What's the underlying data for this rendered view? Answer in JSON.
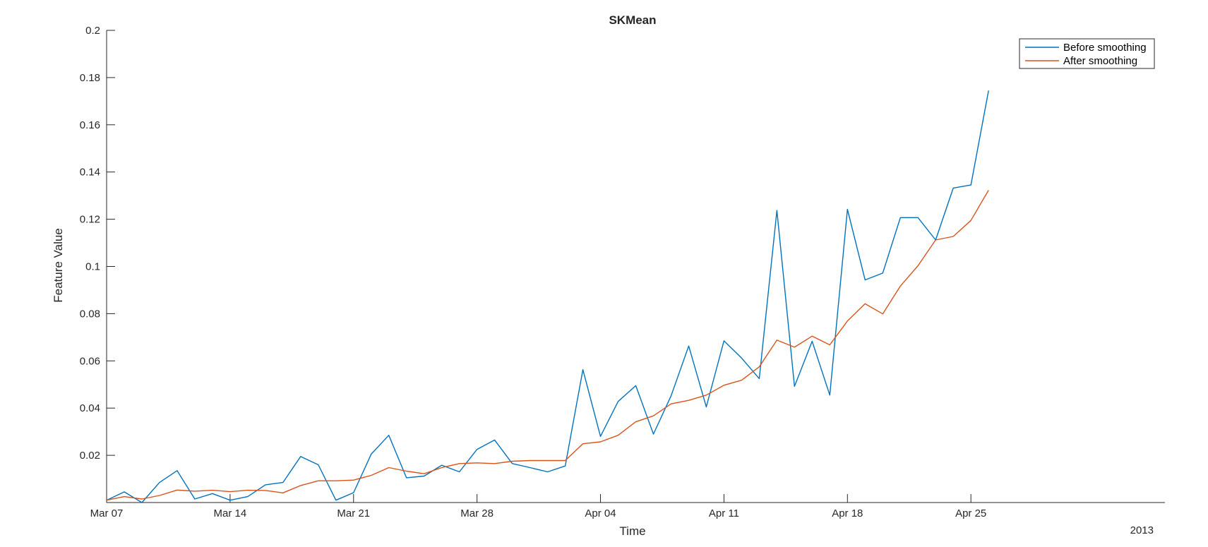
{
  "chart_data": {
    "type": "line",
    "title": "SKMean",
    "xlabel": "Time",
    "ylabel": "Feature Value",
    "x_secondary_label": "2013",
    "x_axis_type": "date",
    "xlim": [
      "2013-03-07",
      "2013-05-06"
    ],
    "ylim": [
      0,
      0.2
    ],
    "yticks": [
      0.02,
      0.04,
      0.06,
      0.08,
      0.1,
      0.12,
      0.14,
      0.16,
      0.18,
      0.2
    ],
    "ytick_labels": [
      "0.02",
      "0.04",
      "0.06",
      "0.08",
      "0.1",
      "0.12",
      "0.14",
      "0.16",
      "0.18",
      "0.2"
    ],
    "xticks": [
      "2013-03-07",
      "2013-03-14",
      "2013-03-21",
      "2013-03-28",
      "2013-04-04",
      "2013-04-11",
      "2013-04-18",
      "2013-04-25"
    ],
    "xtick_labels": [
      "Mar 07",
      "Mar 14",
      "Mar 21",
      "Mar 28",
      "Apr 04",
      "Apr 11",
      "Apr 18",
      "Apr 25"
    ],
    "grid": false,
    "legend_position": "top-right",
    "x": [
      "2013-03-07",
      "2013-03-08",
      "2013-03-09",
      "2013-03-10",
      "2013-03-11",
      "2013-03-12",
      "2013-03-13",
      "2013-03-14",
      "2013-03-15",
      "2013-03-16",
      "2013-03-17",
      "2013-03-18",
      "2013-03-19",
      "2013-03-20",
      "2013-03-21",
      "2013-03-22",
      "2013-03-23",
      "2013-03-24",
      "2013-03-25",
      "2013-03-26",
      "2013-03-27",
      "2013-03-28",
      "2013-03-29",
      "2013-03-30",
      "2013-03-31",
      "2013-04-01",
      "2013-04-02",
      "2013-04-03",
      "2013-04-04",
      "2013-04-05",
      "2013-04-06",
      "2013-04-07",
      "2013-04-08",
      "2013-04-09",
      "2013-04-10",
      "2013-04-11",
      "2013-04-12",
      "2013-04-13",
      "2013-04-14",
      "2013-04-15",
      "2013-04-16",
      "2013-04-17",
      "2013-04-18",
      "2013-04-19",
      "2013-04-20",
      "2013-04-21",
      "2013-04-22",
      "2013-04-23",
      "2013-04-24",
      "2013-04-25",
      "2013-04-26"
    ],
    "series": [
      {
        "name": "Before smoothing",
        "color": "#0072BD",
        "values": [
          0.001,
          0.0045,
          0.0,
          0.0085,
          0.0135,
          0.0015,
          0.0038,
          0.001,
          0.0025,
          0.0075,
          0.0085,
          0.0195,
          0.016,
          0.001,
          0.0042,
          0.0205,
          0.0285,
          0.0105,
          0.0112,
          0.0158,
          0.013,
          0.0225,
          0.0265,
          0.0165,
          0.0148,
          0.013,
          0.0155,
          0.0563,
          0.028,
          0.0428,
          0.0495,
          0.029,
          0.0452,
          0.0663,
          0.0405,
          0.0685,
          0.0612,
          0.0525,
          0.1237,
          0.0492,
          0.0683,
          0.0455,
          0.1242,
          0.0943,
          0.0972,
          0.1207,
          0.1207,
          0.1112,
          0.1332,
          0.1345,
          0.1745
        ]
      },
      {
        "name": "After smoothing",
        "color": "#D95319",
        "values": [
          0.001,
          0.0025,
          0.0015,
          0.003,
          0.0053,
          0.0048,
          0.0052,
          0.0046,
          0.0052,
          0.0051,
          0.0041,
          0.0072,
          0.0092,
          0.0092,
          0.0095,
          0.0115,
          0.0148,
          0.0133,
          0.0122,
          0.0148,
          0.0165,
          0.0168,
          0.0165,
          0.0175,
          0.0178,
          0.0178,
          0.0178,
          0.0249,
          0.0257,
          0.0285,
          0.0342,
          0.0367,
          0.0418,
          0.0433,
          0.0455,
          0.0497,
          0.0518,
          0.0575,
          0.0688,
          0.0658,
          0.0705,
          0.0668,
          0.0769,
          0.0842,
          0.0799,
          0.0917,
          0.1003,
          0.1112,
          0.1127,
          0.1195,
          0.1323
        ]
      }
    ]
  }
}
